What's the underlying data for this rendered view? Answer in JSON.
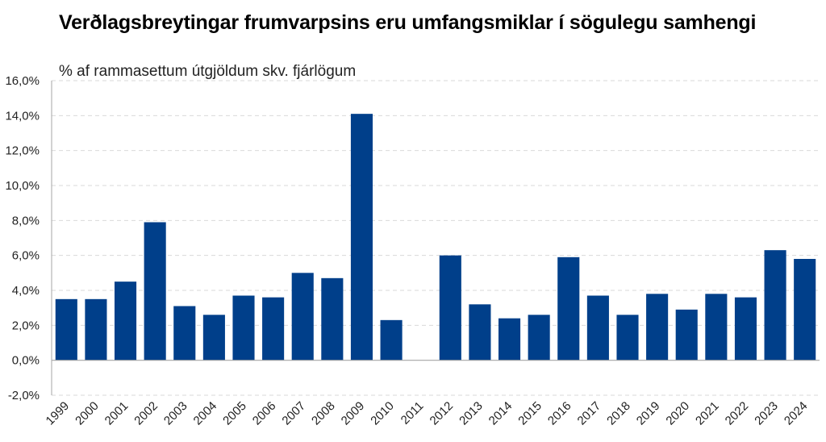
{
  "chart_data": {
    "type": "bar",
    "title": "Verðlagsbreytingar frumvarpsins eru umfangsmiklar í sögulegu samhengi",
    "subtitle": "% af rammasettum útgjöldum skv. fjárlögum",
    "categories": [
      "1999",
      "2000",
      "2001",
      "2002",
      "2003",
      "2004",
      "2005",
      "2006",
      "2007",
      "2008",
      "2009",
      "2010",
      "2011",
      "2012",
      "2013",
      "2014",
      "2015",
      "2016",
      "2017",
      "2018",
      "2019",
      "2020",
      "2021",
      "2022",
      "2023",
      "2024"
    ],
    "values": [
      3.5,
      3.5,
      4.5,
      7.9,
      3.1,
      2.6,
      3.7,
      3.6,
      5.0,
      4.7,
      14.1,
      2.3,
      0.0,
      6.0,
      3.2,
      2.4,
      2.6,
      5.9,
      3.7,
      2.6,
      3.8,
      2.9,
      3.8,
      3.6,
      6.3,
      5.8
    ],
    "ylim": [
      -2,
      16
    ],
    "yticks": [
      "-2,0%",
      "0,0%",
      "2,0%",
      "4,0%",
      "6,0%",
      "8,0%",
      "10,0%",
      "12,0%",
      "14,0%",
      "16,0%"
    ],
    "ytick_values": [
      -2,
      0,
      2,
      4,
      6,
      8,
      10,
      12,
      14,
      16
    ],
    "xlabel": "",
    "ylabel": "",
    "grid": true,
    "bar_color": "#003f8a",
    "grid_color": "#d9d9d9",
    "axis_color": "#a6a6a6"
  }
}
